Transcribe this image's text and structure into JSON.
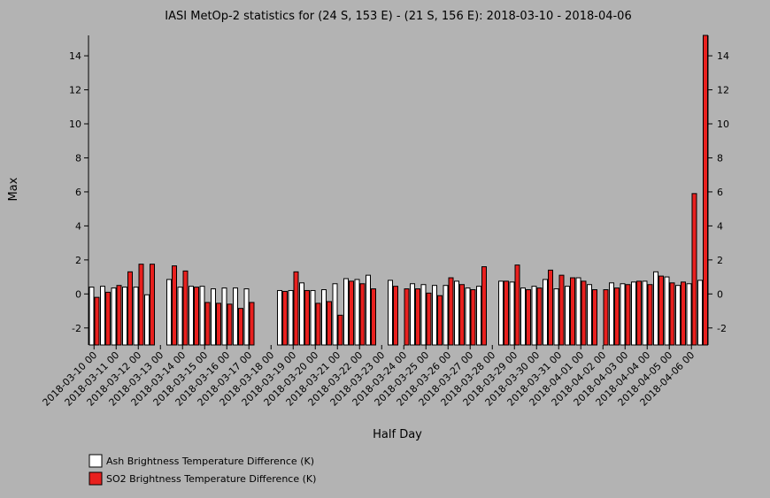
{
  "chart_data": {
    "type": "bar",
    "title": "IASI MetOp-2 statistics for (24 S, 153 E) - (21 S, 156 E): 2018-03-10 - 2018-04-06",
    "x_label": "Half Day",
    "y_label": "Max",
    "categories": [
      "2018-03-10 00",
      null,
      "2018-03-11 00",
      null,
      "2018-03-12 00",
      null,
      "2018-03-13 00",
      null,
      "2018-03-14 00",
      null,
      "2018-03-15 00",
      null,
      "2018-03-16 00",
      null,
      "2018-03-17 00",
      null,
      "2018-03-18 00",
      null,
      "2018-03-19 00",
      null,
      "2018-03-20 00",
      null,
      "2018-03-21 00",
      null,
      "2018-03-22 00",
      null,
      "2018-03-23 00",
      null,
      "2018-03-24 00",
      null,
      "2018-03-25 00",
      null,
      "2018-03-26 00",
      null,
      "2018-03-27 00",
      null,
      "2018-03-28 00",
      null,
      "2018-03-29 00",
      null,
      "2018-03-30 00",
      null,
      "2018-03-31 00",
      null,
      "2018-04-01 00",
      null,
      "2018-04-02 00",
      null,
      "2018-04-03 00",
      null,
      "2018-04-04 00",
      null,
      "2018-04-05 00",
      null,
      "2018-04-06 00",
      null
    ],
    "series": [
      {
        "name": "Ash Brightness Temperature Difference (K)",
        "color": "#ffffff",
        "values": [
          0.4,
          0.45,
          0.35,
          0.4,
          0.4,
          -0.05,
          null,
          0.85,
          0.4,
          0.45,
          0.45,
          0.3,
          0.35,
          0.35,
          0.3,
          null,
          null,
          0.2,
          0.2,
          0.65,
          0.2,
          0.25,
          0.6,
          0.9,
          0.85,
          1.1,
          null,
          0.8,
          null,
          0.6,
          0.55,
          0.5,
          0.5,
          0.75,
          0.35,
          0.45,
          null,
          0.75,
          0.7,
          0.35,
          0.45,
          0.85,
          0.3,
          0.45,
          0.95,
          0.55,
          null,
          0.65,
          0.6,
          0.7,
          0.75,
          1.3,
          1.0,
          0.5,
          0.6,
          0.8
        ]
      },
      {
        "name": "SO2 Brightness Temperature Difference (K)",
        "color": "#e8201e",
        "values": [
          -0.2,
          0.1,
          0.5,
          1.3,
          1.75,
          1.75,
          null,
          1.65,
          1.35,
          0.4,
          -0.5,
          -0.55,
          -0.6,
          -0.85,
          -0.5,
          null,
          null,
          0.15,
          1.3,
          0.2,
          -0.55,
          -0.45,
          -1.25,
          0.75,
          0.6,
          0.3,
          null,
          0.45,
          0.3,
          0.3,
          0.05,
          -0.1,
          0.95,
          0.55,
          0.25,
          1.6,
          null,
          0.75,
          1.7,
          0.25,
          0.35,
          1.4,
          1.1,
          0.95,
          0.75,
          0.25,
          0.25,
          0.35,
          0.55,
          0.75,
          0.55,
          1.05,
          0.65,
          0.7,
          5.9,
          15.2
        ]
      }
    ],
    "ylim": [
      -3,
      15.2
    ],
    "yticks": [
      -2,
      0,
      2,
      4,
      6,
      8,
      10,
      12,
      14
    ]
  }
}
